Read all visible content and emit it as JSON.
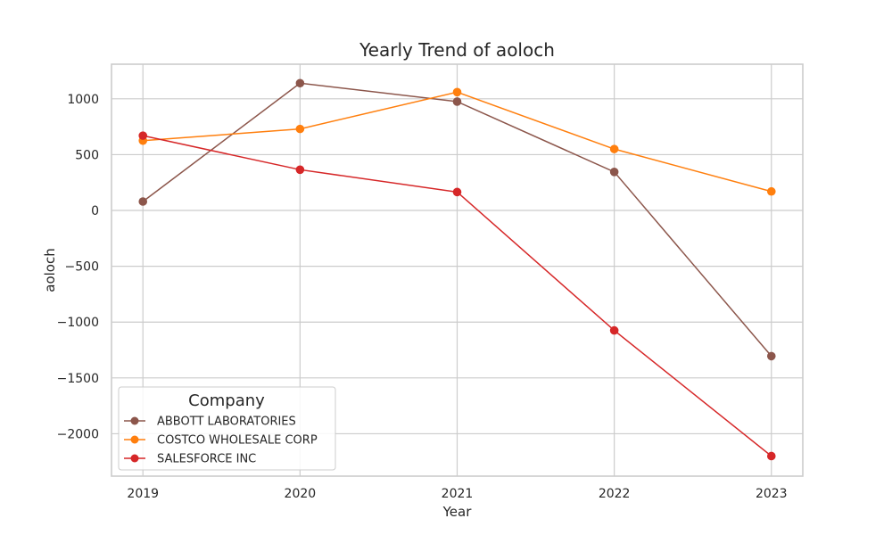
{
  "chart_data": {
    "type": "line",
    "title": "Yearly Trend of aoloch",
    "xlabel": "Year",
    "ylabel": "aoloch",
    "x": [
      2019,
      2020,
      2021,
      2022,
      2023
    ],
    "xticks": [
      "2019",
      "2020",
      "2021",
      "2022",
      "2023"
    ],
    "yticks": [
      1000,
      500,
      0,
      -500,
      -1000,
      -1500,
      -2000
    ],
    "ytick_labels": [
      "1000",
      "500",
      "0",
      "−500",
      "−1000",
      "−1500",
      "−2000"
    ],
    "ylim": [
      -2380,
      1310
    ],
    "xlim": [
      2018.8,
      2023.2
    ],
    "grid": true,
    "legend": {
      "title": "Company",
      "placement": "lower-left"
    },
    "series": [
      {
        "name": "ABBOTT LABORATORIES",
        "color": "#8c564b",
        "values": [
          80,
          1140,
          975,
          345,
          -1305
        ]
      },
      {
        "name": "COSTCO WHOLESALE CORP",
        "color": "#ff7f0e",
        "values": [
          625,
          730,
          1060,
          550,
          170
        ]
      },
      {
        "name": "SALESFORCE INC",
        "color": "#d62728",
        "values": [
          670,
          365,
          165,
          -1075,
          -2200
        ]
      }
    ]
  }
}
